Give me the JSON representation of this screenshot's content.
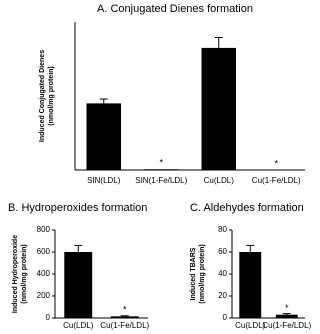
{
  "chart_data": [
    {
      "type": "bar",
      "title": "A. Conjugated Dienes formation",
      "y_label": [
        "Induced Conjugated Dienes",
        "(nmol/mg protein)"
      ],
      "categories": [
        "SIN(LDL)",
        "SIN(1-Fe/LDL)",
        "Cu(LDL)",
        "Cu(1-Fe/LDL)"
      ],
      "values": [
        90,
        1,
        165,
        0
      ],
      "errors": [
        6,
        0,
        14,
        0
      ],
      "annotations": [
        null,
        "*",
        null,
        "*"
      ],
      "color": "#000000",
      "ylim": [
        0,
        200
      ]
    },
    {
      "type": "bar",
      "title": "B. Hydroperoxides formation",
      "y_label": [
        "Induced Hydroperoxide",
        "(nmol/mg protein)"
      ],
      "categories": [
        "Cu(LDL)",
        "Cu(1-Fe/LDL)"
      ],
      "values": [
        600,
        15
      ],
      "errors": [
        60,
        5
      ],
      "annotations": [
        null,
        "*"
      ],
      "color": "#000000",
      "ylim": [
        0,
        800
      ],
      "yticks": [
        0,
        200,
        400,
        600,
        800
      ]
    },
    {
      "type": "bar",
      "title": "C. Aldehydes formation",
      "y_label": [
        "Induced TBARS",
        "(nmol/mg protein)"
      ],
      "categories": [
        "Cu(LDL)",
        "Cu(1-Fe/LDL)"
      ],
      "values": [
        60,
        3
      ],
      "errors": [
        6,
        1
      ],
      "annotations": [
        null,
        "*"
      ],
      "color": "#000000",
      "ylim": [
        0,
        80
      ],
      "yticks": [
        0,
        20,
        40,
        60,
        80
      ]
    }
  ]
}
